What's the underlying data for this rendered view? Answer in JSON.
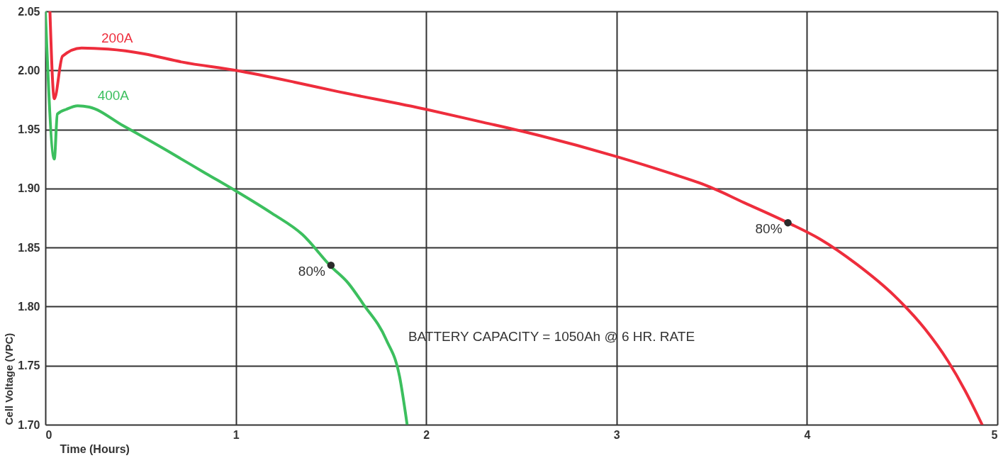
{
  "chart_data": {
    "type": "line",
    "xlabel": "Time (Hours)",
    "ylabel": "Cell Voltage (VPC)",
    "xlim": [
      0,
      5
    ],
    "xticks": [
      0,
      1,
      2,
      3,
      4,
      5
    ],
    "ylim": [
      1.7,
      2.05
    ],
    "yticks": [
      {
        "value": 1.7,
        "label": "1.70"
      },
      {
        "value": 1.75,
        "label": "1.75"
      },
      {
        "value": 1.8,
        "label": "1.80"
      },
      {
        "value": 1.85,
        "label": "1.85"
      },
      {
        "value": 1.9,
        "label": "1.90"
      },
      {
        "value": 1.95,
        "label": "1.95"
      },
      {
        "value": 2.0,
        "label": "2.00"
      },
      {
        "value": 2.05,
        "label": "2.05"
      }
    ],
    "grid": true,
    "marker": "none",
    "line_style": "solid",
    "series": [
      {
        "name": "200A",
        "color": "#ee2d3c",
        "x": [
          0.024,
          0.047,
          0.09,
          0.19,
          0.33,
          0.52,
          0.72,
          1.0,
          1.31,
          1.51,
          2.0,
          2.3,
          2.49,
          3.0,
          3.28,
          3.48,
          3.67,
          3.9,
          4.07,
          4.26,
          4.46,
          4.62,
          4.74,
          4.83,
          4.89,
          4.92
        ],
        "values": [
          2.05,
          1.976,
          2.012,
          2.019,
          2.018,
          2.014,
          2.007,
          2.0,
          1.99,
          1.983,
          1.967,
          1.956,
          1.949,
          1.927,
          1.913,
          1.902,
          1.888,
          1.871,
          1.857,
          1.836,
          1.809,
          1.781,
          1.754,
          1.729,
          1.71,
          1.7
        ]
      },
      {
        "name": "400A",
        "color": "#3cbf5e",
        "x": [
          0.0,
          0.047,
          0.063,
          0.11,
          0.17,
          0.23,
          0.41,
          0.64,
          0.84,
          1.0,
          1.19,
          1.35,
          1.5,
          1.59,
          1.67,
          1.79,
          1.86,
          1.9
        ],
        "values": [
          2.05,
          1.925,
          1.963,
          1.967,
          1.97,
          1.969,
          1.953,
          1.932,
          1.913,
          1.898,
          1.879,
          1.861,
          1.834,
          1.82,
          1.802,
          1.772,
          1.741,
          1.7
        ]
      },
      {
        "type": "scatter",
        "marker": "circle",
        "color": "#2b2b2b",
        "x": [
          1.5,
          3.9
        ],
        "values": [
          1.835,
          1.871
        ]
      }
    ],
    "annotations": [
      {
        "text": "80%",
        "x": 1.5,
        "y": 1.835
      },
      {
        "text": "80%",
        "x": 3.9,
        "y": 1.871
      },
      "BATTERY CAPACITY = 1050Ah @ 6 HR. RATE"
    ]
  }
}
